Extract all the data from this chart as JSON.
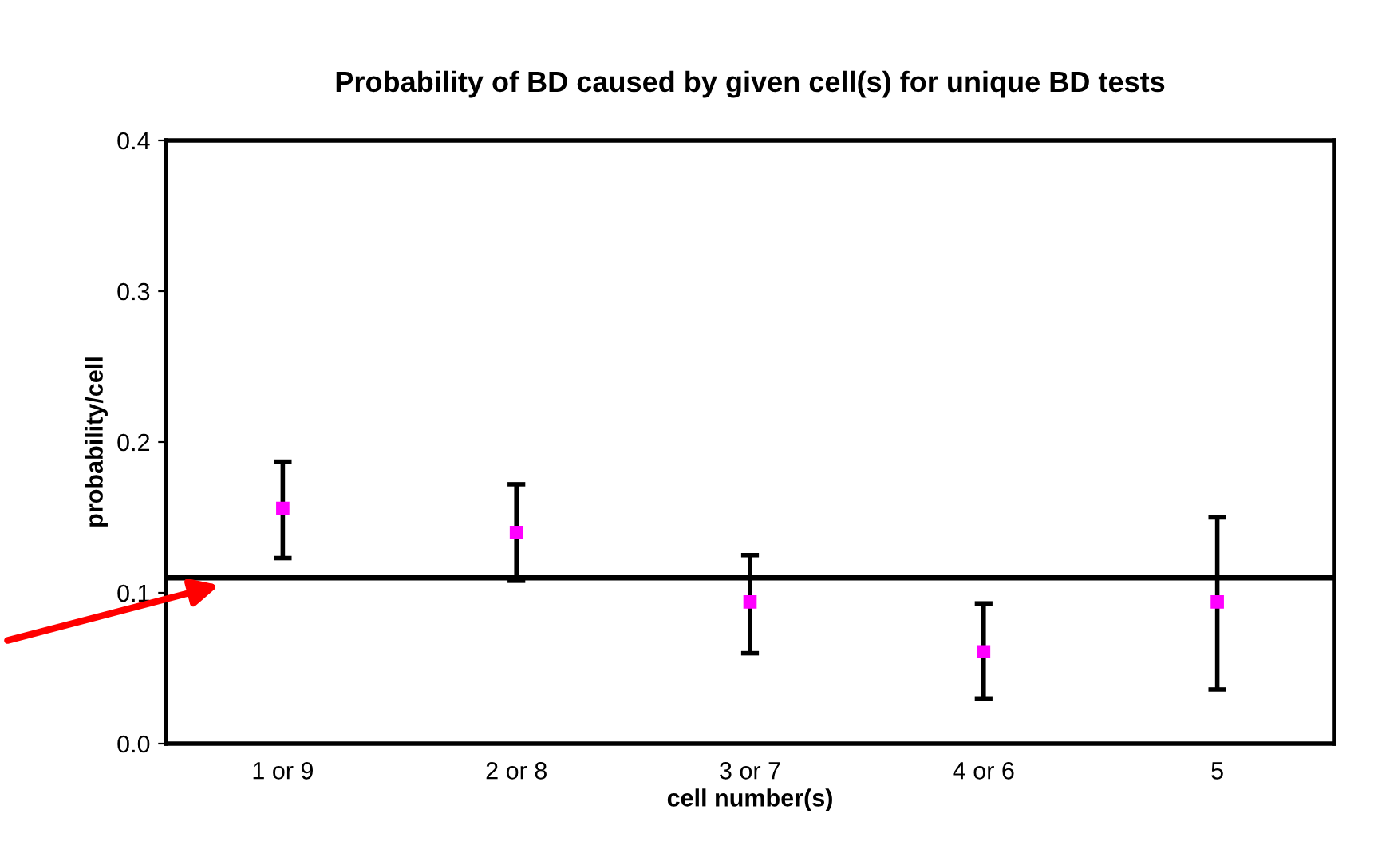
{
  "chart_data": {
    "type": "scatter",
    "title": "Probability of BD caused by given cell(s) for unique BD tests",
    "xlabel": "cell number(s)",
    "ylabel": "probability/cell",
    "categories": [
      "1 or 9",
      "2 or 8",
      "3 or 7",
      "4 or 6",
      "5"
    ],
    "series": [
      {
        "color": "#ff00ff",
        "values": [
          0.156,
          0.14,
          0.094,
          0.061,
          0.094
        ],
        "errors": [
          [
            0.123,
            0.187
          ],
          [
            0.108,
            0.172
          ],
          [
            0.06,
            0.125
          ],
          [
            0.03,
            0.093
          ],
          [
            0.036,
            0.15
          ]
        ]
      }
    ],
    "ylim": [
      0,
      0.4
    ],
    "yticks": [
      {
        "value": 0,
        "label": "0.0"
      },
      0.1,
      0.2,
      0.3,
      0.4
    ],
    "ref_lines": [
      {
        "axis": "y",
        "value": 0.11,
        "color": "#000000"
      }
    ],
    "marker": "square",
    "grid": false,
    "legend": false
  }
}
